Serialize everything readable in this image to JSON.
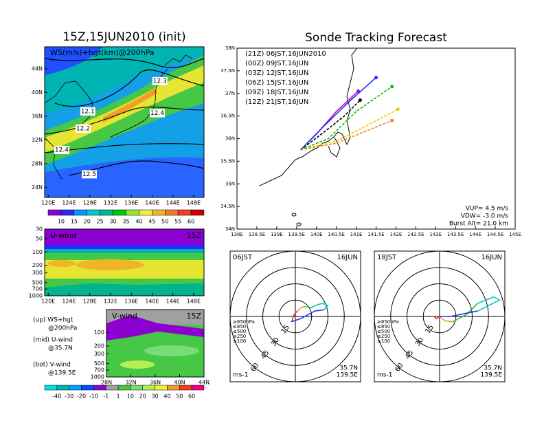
{
  "chart_data": [
    {
      "type": "heatmap",
      "title": "15Z,15JUN2010 (init)",
      "subtitle": "WS(m/s)+hgt(km)@200hPa",
      "xlim": [
        119.3,
        150
      ],
      "ylim": [
        22.3,
        47.7
      ],
      "xticks": [
        {
          "value": 120,
          "label": "120E"
        },
        {
          "value": 124,
          "label": "124E"
        },
        {
          "value": 128,
          "label": "128E"
        },
        {
          "value": 132,
          "label": "132E"
        },
        {
          "value": 136,
          "label": "136E"
        },
        {
          "value": 140,
          "label": "140E"
        },
        {
          "value": 144,
          "label": "144E"
        },
        {
          "value": 148,
          "label": "148E"
        }
      ],
      "yticks": [
        {
          "value": 24,
          "label": "24N"
        },
        {
          "value": 28,
          "label": "28N"
        },
        {
          "value": 32,
          "label": "32N"
        },
        {
          "value": 36,
          "label": "36N"
        },
        {
          "value": 40,
          "label": "40N"
        },
        {
          "value": 44,
          "label": "44N"
        }
      ],
      "contour_values": [
        12.3,
        12.1,
        12.2,
        12.4,
        12.4,
        12.5
      ],
      "contour_x": [
        141.5,
        127.6,
        126.7,
        141,
        122.6,
        127.9
      ],
      "contour_y": [
        41.9,
        36.8,
        33.9,
        36.5,
        30.3,
        26.2
      ],
      "colorbar": {
        "values": [
          10,
          15,
          20,
          25,
          30,
          35,
          40,
          45,
          50,
          55,
          60
        ],
        "colors": [
          "#8c00d2",
          "#2828ff",
          "#0096ff",
          "#00c8c8",
          "#00b48c",
          "#00c800",
          "#96e632",
          "#f0f03c",
          "#f0b428",
          "#f07828",
          "#f03c28",
          "#c80000"
        ]
      }
    },
    {
      "type": "heatmap",
      "title": "U-wind",
      "time": "15Z",
      "log_y": true,
      "xlim": [
        119.3,
        150
      ],
      "ylim": [
        1000,
        30
      ],
      "xticks": [
        {
          "value": 120,
          "label": "120E"
        },
        {
          "value": 124,
          "label": "124E"
        },
        {
          "value": 128,
          "label": "128E"
        },
        {
          "value": 132,
          "label": "132E"
        },
        {
          "value": 136,
          "label": "136E"
        },
        {
          "value": 140,
          "label": "140E"
        },
        {
          "value": 144,
          "label": "144E"
        },
        {
          "value": 148,
          "label": "148E"
        }
      ],
      "yticks": [
        30,
        50,
        100,
        200,
        300,
        500,
        700,
        1000
      ]
    },
    {
      "type": "heatmap",
      "title": "V-wind",
      "time": "15Z",
      "log_y": true,
      "xlim": [
        28,
        44
      ],
      "ylim": [
        1000,
        30
      ],
      "xticks": [
        {
          "value": 28,
          "label": "28N"
        },
        {
          "value": 32,
          "label": "32N"
        },
        {
          "value": 36,
          "label": "36N"
        },
        {
          "value": 40,
          "label": "40N"
        },
        {
          "value": 44,
          "label": "44N"
        }
      ],
      "yticks": [
        100,
        200,
        300,
        500,
        700,
        1000
      ],
      "colorbar": {
        "values": [
          -40,
          -30,
          -20,
          -10,
          -1,
          1,
          10,
          20,
          30,
          40,
          50,
          60
        ],
        "colors": [
          "#00e0e0",
          "#00b4b4",
          "#00a0ff",
          "#0050ff",
          "#8c00d2",
          "#a0a0a0",
          "#46c846",
          "#78dc78",
          "#b4f050",
          "#f0f03c",
          "#f0a028",
          "#f03c28",
          "#f00080"
        ]
      }
    },
    {
      "type": "line",
      "title": "Sonde Tracking Forecast",
      "xlim": [
        138,
        145
      ],
      "ylim": [
        34,
        38
      ],
      "xticks": [
        {
          "value": 138,
          "label": "138E"
        },
        {
          "value": 138.5,
          "label": "138.5E"
        },
        {
          "value": 139,
          "label": "139E"
        },
        {
          "value": 139.5,
          "label": "139.5E"
        },
        {
          "value": 140,
          "label": "140E"
        },
        {
          "value": 140.5,
          "label": "140.5E"
        },
        {
          "value": 141,
          "label": "141E"
        },
        {
          "value": 141.5,
          "label": "141.5E"
        },
        {
          "value": 142,
          "label": "142E"
        },
        {
          "value": 142.5,
          "label": "142.5E"
        },
        {
          "value": 143,
          "label": "143E"
        },
        {
          "value": 143.5,
          "label": "143.5E"
        },
        {
          "value": 144,
          "label": "144E"
        },
        {
          "value": 144.5,
          "label": "144.5E"
        },
        {
          "value": 145,
          "label": "145E"
        }
      ],
      "yticks": [
        {
          "value": 34,
          "label": "34N"
        },
        {
          "value": 34.5,
          "label": "34.5N"
        },
        {
          "value": 35,
          "label": "35N"
        },
        {
          "value": 35.5,
          "label": "35.5N"
        },
        {
          "value": 36,
          "label": "36N"
        },
        {
          "value": 36.5,
          "label": "36.5N"
        },
        {
          "value": 37,
          "label": "37N"
        },
        {
          "value": 37.5,
          "label": "37.5N"
        },
        {
          "value": 38,
          "label": "38N"
        }
      ],
      "series": [
        {
          "name": "(21Z)  06JST,16JUN2010",
          "color": "#000000",
          "linestyle": "dashed",
          "x": [
            139.6,
            140.2,
            140.7,
            141.1
          ],
          "values": [
            35.75,
            36.15,
            36.5,
            36.85
          ]
        },
        {
          "name": "(00Z)  09JST,16JUN",
          "color": "#c000c0",
          "linestyle": "solid",
          "x": [
            139.6,
            140.0,
            140.5,
            141.05
          ],
          "values": [
            35.75,
            36.1,
            36.6,
            37.05
          ]
        },
        {
          "name": "(03Z)  12JST,16JUN",
          "color": "#2030ff",
          "linestyle": "solid",
          "x": [
            139.6,
            140.1,
            140.8,
            141.5
          ],
          "values": [
            35.75,
            36.2,
            36.8,
            37.35
          ]
        },
        {
          "name": "(06Z)  15JST,16JUN",
          "color": "#00c000",
          "linestyle": "dashed",
          "x": [
            139.6,
            140.3,
            141.0,
            141.9
          ],
          "values": [
            35.75,
            36.0,
            36.6,
            37.15
          ]
        },
        {
          "name": "(09Z)  18JST,16JUN",
          "color": "#e0d000",
          "linestyle": "dashed",
          "x": [
            139.6,
            140.5,
            141.3,
            142.05
          ],
          "values": [
            35.75,
            35.95,
            36.3,
            36.65
          ]
        },
        {
          "name": "(12Z)  21JST,16JUN",
          "color": "#f08020",
          "linestyle": "dashed",
          "x": [
            139.6,
            140.5,
            141.2,
            141.9
          ],
          "values": [
            35.75,
            35.9,
            36.15,
            36.4
          ]
        }
      ],
      "annotations": [
        "VUP= 4.5 m/s",
        "VDW= -3.0 m/s",
        "Burst Alt= 21.0 km"
      ]
    },
    {
      "type": "hodograph",
      "title": "06JST",
      "date": "16JUN",
      "rings": [
        15,
        30,
        45,
        60
      ],
      "unit": "ms-1",
      "location": [
        "35.7N",
        "139.5E"
      ],
      "series": [
        {
          "name": "≥850hPa",
          "color": "#f02020",
          "x": [
            -3,
            -2,
            0,
            2
          ],
          "values": [
            -5,
            0,
            3,
            5
          ]
        },
        {
          "name": "≤850",
          "color": "#f0a020",
          "x": [
            2,
            5,
            8
          ],
          "values": [
            5,
            8,
            9
          ]
        },
        {
          "name": "≤500",
          "color": "#30c030",
          "x": [
            8,
            15,
            18
          ],
          "values": [
            9,
            8,
            10
          ]
        },
        {
          "name": "≤250",
          "color": "#00c8d0",
          "x": [
            18,
            25,
            30,
            26
          ],
          "values": [
            10,
            12,
            10,
            6
          ]
        },
        {
          "name": "≤100",
          "color": "#2030ff",
          "x": [
            26,
            18,
            5,
            -4
          ],
          "values": [
            6,
            5,
            -2,
            -5
          ]
        }
      ]
    },
    {
      "type": "hodograph",
      "title": "18JST",
      "date": "16JUN",
      "rings": [
        15,
        30,
        45,
        60
      ],
      "unit": "ms-1",
      "location": [
        "35.7N",
        "139.5E"
      ],
      "series": [
        {
          "name": "≥850hPa",
          "color": "#f02020",
          "x": [
            -5,
            -3,
            0
          ],
          "values": [
            0,
            -2,
            0
          ]
        },
        {
          "name": "≤850",
          "color": "#f0a020",
          "x": [
            0,
            5,
            12
          ],
          "values": [
            0,
            -4,
            -5
          ]
        },
        {
          "name": "≤500",
          "color": "#30c030",
          "x": [
            12,
            25,
            35
          ],
          "values": [
            -5,
            2,
            12
          ]
        },
        {
          "name": "≤250",
          "color": "#00c8d0",
          "x": [
            35,
            50,
            55,
            35
          ],
          "values": [
            12,
            18,
            15,
            5
          ]
        },
        {
          "name": "≤100",
          "color": "#2030ff",
          "x": [
            35,
            10,
            0
          ],
          "values": [
            5,
            0,
            0
          ]
        }
      ]
    }
  ],
  "notes": [
    "(up) WS+hgt",
    "@200hPa",
    "(mid) U-wind",
    "@35.7N",
    "(bot) V-wind",
    "@139.5E"
  ]
}
